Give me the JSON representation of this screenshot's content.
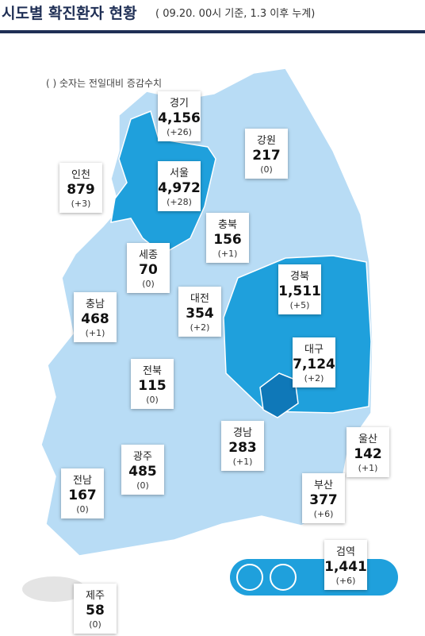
{
  "header": {
    "title": "시도별 확진환자 현황",
    "subtitle": "( 09.20. 00시 기준, 1.3 이후 누계)"
  },
  "note": "( ) 숫자는 전일대비 증감수치",
  "regions": [
    {
      "name": "경기",
      "count": "4,156",
      "change": "(+26)"
    },
    {
      "name": "강원",
      "count": "217",
      "change": "(0)"
    },
    {
      "name": "인천",
      "count": "879",
      "change": "(+3)"
    },
    {
      "name": "서울",
      "count": "4,972",
      "change": "(+28)"
    },
    {
      "name": "충북",
      "count": "156",
      "change": "(+1)"
    },
    {
      "name": "세종",
      "count": "70",
      "change": "(0)"
    },
    {
      "name": "경북",
      "count": "1,511",
      "change": "(+5)"
    },
    {
      "name": "충남",
      "count": "468",
      "change": "(+1)"
    },
    {
      "name": "대전",
      "count": "354",
      "change": "(+2)"
    },
    {
      "name": "대구",
      "count": "7,124",
      "change": "(+2)"
    },
    {
      "name": "전북",
      "count": "115",
      "change": "(0)"
    },
    {
      "name": "경남",
      "count": "283",
      "change": "(+1)"
    },
    {
      "name": "울산",
      "count": "142",
      "change": "(+1)"
    },
    {
      "name": "광주",
      "count": "485",
      "change": "(0)"
    },
    {
      "name": "전남",
      "count": "167",
      "change": "(0)"
    },
    {
      "name": "부산",
      "count": "377",
      "change": "(+6)"
    },
    {
      "name": "검역",
      "count": "1,441",
      "change": "(+6)"
    },
    {
      "name": "제주",
      "count": "58",
      "change": "(0)"
    }
  ]
}
